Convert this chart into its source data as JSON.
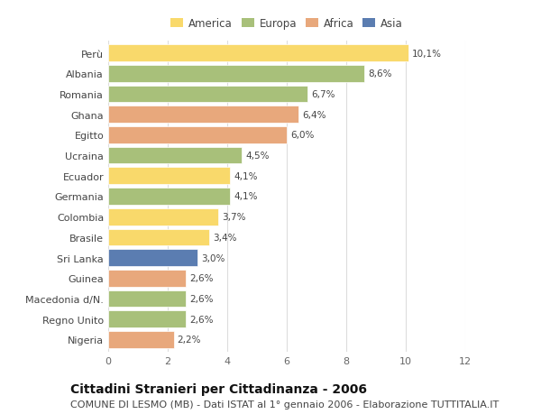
{
  "countries": [
    "Perù",
    "Albania",
    "Romania",
    "Ghana",
    "Egitto",
    "Ucraina",
    "Ecuador",
    "Germania",
    "Colombia",
    "Brasile",
    "Sri Lanka",
    "Guinea",
    "Macedonia d/N.",
    "Regno Unito",
    "Nigeria"
  ],
  "values": [
    10.1,
    8.6,
    6.7,
    6.4,
    6.0,
    4.5,
    4.1,
    4.1,
    3.7,
    3.4,
    3.0,
    2.6,
    2.6,
    2.6,
    2.2
  ],
  "labels": [
    "10,1%",
    "8,6%",
    "6,7%",
    "6,4%",
    "6,0%",
    "4,5%",
    "4,1%",
    "4,1%",
    "3,7%",
    "3,4%",
    "3,0%",
    "2,6%",
    "2,6%",
    "2,6%",
    "2,2%"
  ],
  "continents": [
    "America",
    "Europa",
    "Europa",
    "Africa",
    "Africa",
    "Europa",
    "America",
    "Europa",
    "America",
    "America",
    "Asia",
    "Africa",
    "Europa",
    "Europa",
    "Africa"
  ],
  "colors": {
    "America": "#F9D96B",
    "Europa": "#A8C07A",
    "Africa": "#E8A87C",
    "Asia": "#5B7DB1"
  },
  "legend_order": [
    "America",
    "Europa",
    "Africa",
    "Asia"
  ],
  "xlim": [
    0,
    12
  ],
  "xticks": [
    0,
    2,
    4,
    6,
    8,
    10,
    12
  ],
  "title": "Cittadini Stranieri per Cittadinanza - 2006",
  "subtitle": "COMUNE DI LESMO (MB) - Dati ISTAT al 1° gennaio 2006 - Elaborazione TUTTITALIA.IT",
  "bg_color": "#ffffff",
  "grid_color": "#dddddd",
  "title_fontsize": 10,
  "subtitle_fontsize": 8,
  "label_fontsize": 7.5,
  "tick_fontsize": 8,
  "legend_fontsize": 8.5
}
